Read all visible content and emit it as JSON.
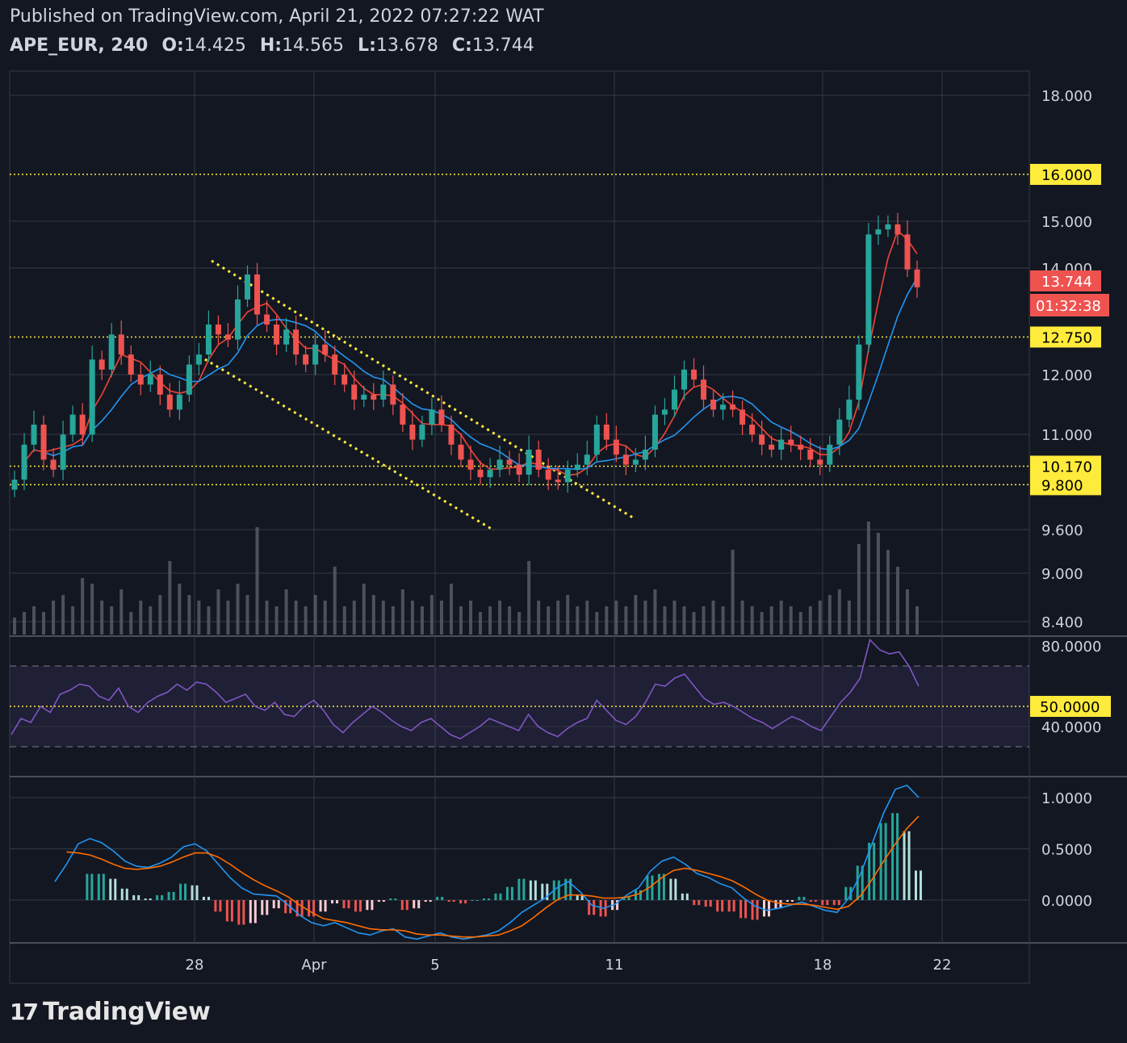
{
  "header": {
    "published": "Published on TradingView.com, April 21, 2022 07:27:22 WAT",
    "symbol": "APE_EUR, 240",
    "open_label": "O:",
    "open": "14.425",
    "high_label": "H:",
    "high": "14.565",
    "low_label": "L:",
    "low": "13.678",
    "close_label": "C:",
    "close": "13.744"
  },
  "logo": {
    "text": "TradingView",
    "mark": "17"
  },
  "colors": {
    "up": "#26a69a",
    "down": "#ef5350",
    "grid": "#363a45",
    "level": "#ffeb3b",
    "ma_fast": "#f44336",
    "ma_slow": "#2196f3",
    "rsi": "#7e57c2",
    "macd": "#2196f3",
    "signal": "#ff6d00",
    "volume": "#5d606b"
  },
  "chart_data": [
    {
      "type": "candlestick",
      "panel": "price",
      "x_ticks": [
        "28",
        "Apr",
        "5",
        "11",
        "18",
        "22"
      ],
      "y_ticks": [
        "18.000",
        "15.000",
        "14.000",
        "12.000",
        "11.000",
        "9.600",
        "9.000",
        "8.400"
      ],
      "ohlc_last": {
        "open": 14.425,
        "high": 14.565,
        "low": 13.678,
        "close": 13.744
      },
      "close_path": [
        9.9,
        10.6,
        11.0,
        10.3,
        10.1,
        10.8,
        11.2,
        10.8,
        12.3,
        12.1,
        12.8,
        12.4,
        12.0,
        11.8,
        12.0,
        11.6,
        11.3,
        11.6,
        12.2,
        12.4,
        13.0,
        12.8,
        12.7,
        13.5,
        14.0,
        13.2,
        13.0,
        12.6,
        12.9,
        12.4,
        12.2,
        12.6,
        12.4,
        12.0,
        11.8,
        11.5,
        11.6,
        11.5,
        11.8,
        11.4,
        11.0,
        10.7,
        11.0,
        11.3,
        11.0,
        10.6,
        10.3,
        10.1,
        9.95,
        10.1,
        10.3,
        10.2,
        10.0,
        10.5,
        10.1,
        9.9,
        9.85,
        10.1,
        10.2,
        10.4,
        11.0,
        10.7,
        10.4,
        10.2,
        10.3,
        10.5,
        11.2,
        11.3,
        11.7,
        12.1,
        11.9,
        11.5,
        11.3,
        11.4,
        11.3,
        11.0,
        10.8,
        10.6,
        10.5,
        10.7,
        10.6,
        10.5,
        10.3,
        10.2,
        10.6,
        11.1,
        11.5,
        12.6,
        14.8,
        14.9,
        15.0,
        14.8,
        14.1,
        13.744
      ],
      "volume_path": [
        0.3,
        0.4,
        0.5,
        0.4,
        0.6,
        0.7,
        0.5,
        1.0,
        0.9,
        0.6,
        0.5,
        0.8,
        0.4,
        0.6,
        0.5,
        0.7,
        1.3,
        0.9,
        0.7,
        0.6,
        0.5,
        0.8,
        0.6,
        0.9,
        0.7,
        1.9,
        0.6,
        0.5,
        0.8,
        0.6,
        0.5,
        0.7,
        0.6,
        1.2,
        0.5,
        0.6,
        0.9,
        0.7,
        0.6,
        0.5,
        0.8,
        0.6,
        0.5,
        0.7,
        0.6,
        0.9,
        0.5,
        0.6,
        0.4,
        0.5,
        0.6,
        0.5,
        0.4,
        1.3,
        0.6,
        0.5,
        0.6,
        0.7,
        0.5,
        0.6,
        0.4,
        0.5,
        0.6,
        0.5,
        0.7,
        0.6,
        0.8,
        0.5,
        0.6,
        0.5,
        0.4,
        0.5,
        0.6,
        0.5,
        1.5,
        0.6,
        0.5,
        0.4,
        0.5,
        0.6,
        0.5,
        0.4,
        0.5,
        0.6,
        0.7,
        0.8,
        0.6,
        1.6,
        2.0,
        1.8,
        1.5,
        1.2,
        0.8,
        0.5
      ],
      "levels": [
        16.0,
        12.75,
        10.17,
        9.8
      ],
      "level_labels": [
        "16.000",
        "12.750",
        "10.170",
        "9.800"
      ],
      "last_price_label": "13.744",
      "countdown": "01:32:38"
    },
    {
      "type": "line",
      "panel": "rsi",
      "y_ticks": [
        "80.0000",
        "40.0000"
      ],
      "level_label": "50.0000",
      "band": [
        70,
        30
      ],
      "values": [
        36,
        44,
        42,
        50,
        47,
        56,
        58,
        61,
        60,
        55,
        53,
        59,
        50,
        47,
        52,
        55,
        57,
        61,
        58,
        62,
        61,
        57,
        52,
        54,
        56,
        50,
        48,
        52,
        46,
        45,
        50,
        53,
        48,
        41,
        37,
        42,
        46,
        50,
        47,
        43,
        40,
        38,
        42,
        44,
        40,
        36,
        34,
        37,
        40,
        44,
        42,
        40,
        38,
        46,
        40,
        37,
        35,
        39,
        42,
        44,
        53,
        48,
        43,
        41,
        45,
        52,
        61,
        60,
        64,
        66,
        60,
        54,
        51,
        52,
        50,
        47,
        44,
        42,
        39,
        42,
        45,
        43,
        40,
        38,
        45,
        52,
        57,
        64,
        83,
        78,
        76,
        77,
        70,
        60
      ]
    },
    {
      "type": "line",
      "panel": "macd",
      "y_ticks": [
        "1.0000",
        "0.5000",
        "0.0000"
      ],
      "macd": [
        0.18,
        0.35,
        0.55,
        0.6,
        0.56,
        0.48,
        0.38,
        0.33,
        0.32,
        0.36,
        0.42,
        0.52,
        0.55,
        0.48,
        0.35,
        0.22,
        0.12,
        0.06,
        0.05,
        0.04,
        -0.05,
        -0.15,
        -0.22,
        -0.25,
        -0.22,
        -0.27,
        -0.32,
        -0.34,
        -0.3,
        -0.28,
        -0.36,
        -0.38,
        -0.35,
        -0.32,
        -0.36,
        -0.38,
        -0.36,
        -0.34,
        -0.3,
        -0.22,
        -0.12,
        -0.05,
        0.02,
        0.12,
        0.18,
        0.08,
        -0.05,
        -0.08,
        -0.04,
        0.05,
        0.12,
        0.28,
        0.38,
        0.42,
        0.35,
        0.26,
        0.22,
        0.16,
        0.12,
        0.02,
        -0.06,
        -0.1,
        -0.08,
        -0.05,
        -0.02,
        -0.06,
        -0.1,
        -0.12,
        0.02,
        0.25,
        0.55,
        0.85,
        1.08,
        1.12,
        1.0
      ],
      "signal": [
        0.48,
        0.47,
        0.46,
        0.44,
        0.4,
        0.35,
        0.31,
        0.3,
        0.31,
        0.33,
        0.37,
        0.42,
        0.46,
        0.46,
        0.42,
        0.35,
        0.27,
        0.2,
        0.14,
        0.09,
        0.03,
        -0.05,
        -0.12,
        -0.18,
        -0.2,
        -0.22,
        -0.25,
        -0.28,
        -0.29,
        -0.29,
        -0.3,
        -0.33,
        -0.34,
        -0.34,
        -0.35,
        -0.36,
        -0.36,
        -0.35,
        -0.34,
        -0.3,
        -0.25,
        -0.17,
        -0.08,
        0.0,
        0.05,
        0.05,
        0.04,
        0.02,
        0.02,
        0.03,
        0.06,
        0.13,
        0.22,
        0.29,
        0.31,
        0.29,
        0.26,
        0.23,
        0.19,
        0.13,
        0.06,
        0.0,
        -0.03,
        -0.04,
        -0.04,
        -0.05,
        -0.07,
        -0.09,
        -0.06,
        0.04,
        0.2,
        0.38,
        0.55,
        0.7,
        0.82
      ]
    }
  ]
}
